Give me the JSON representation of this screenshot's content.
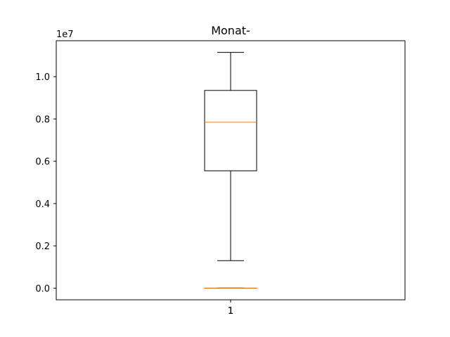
{
  "chart_data": {
    "type": "boxplot",
    "title": "Monat-",
    "xlabel": "",
    "ylabel": "",
    "y_scale_label": "1e7",
    "ylim": [
      -550000,
      11700000
    ],
    "y_ticks": [
      0,
      2000000,
      4000000,
      6000000,
      8000000,
      10000000
    ],
    "y_tick_labels": [
      "0.0",
      "0.2",
      "0.4",
      "0.6",
      "0.8",
      "1.0"
    ],
    "categories": [
      "1",
      "1"
    ],
    "boxes": [
      {
        "label": "1",
        "whisker_low": 1300000,
        "q1": 5550000,
        "median": 7850000,
        "q3": 9350000,
        "whisker_high": 11150000
      },
      {
        "label": "1",
        "whisker_low": 0,
        "q1": 0,
        "median": 0,
        "q3": 0,
        "whisker_high": 0
      }
    ],
    "grid": false,
    "colors": {
      "box": "#000000",
      "median": "#ff7f0e",
      "background": "#ffffff"
    }
  }
}
